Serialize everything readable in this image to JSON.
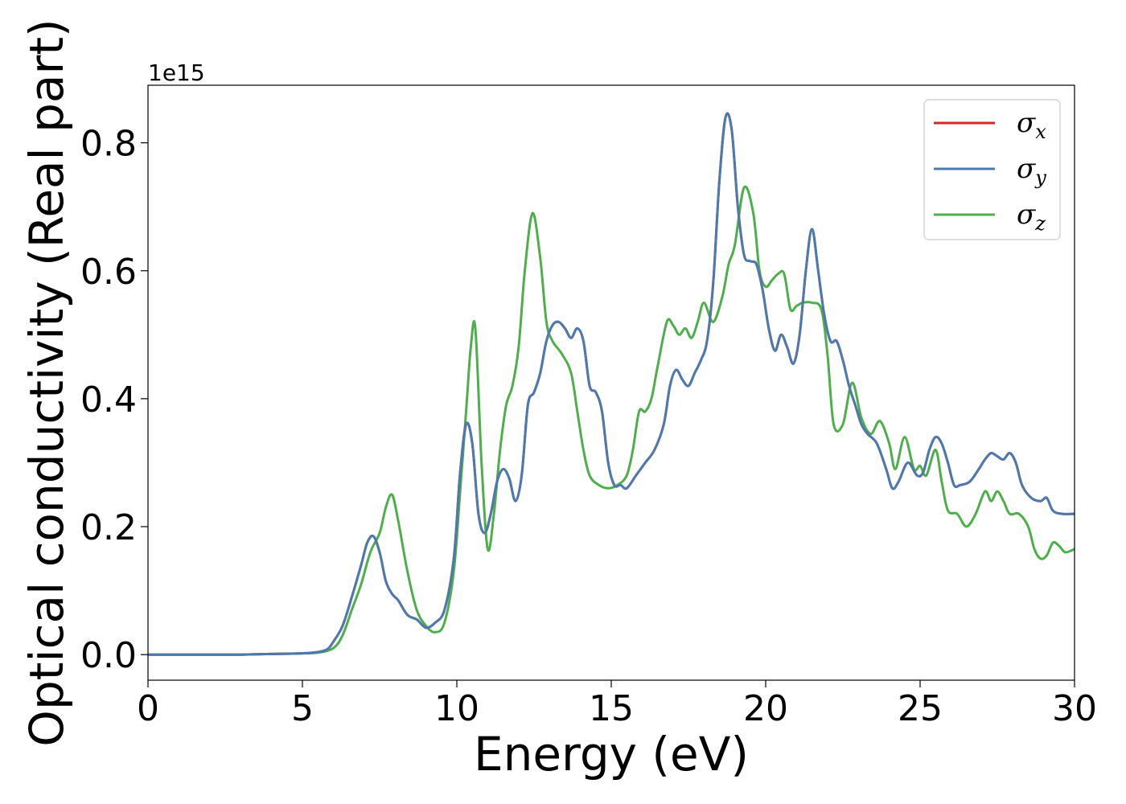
{
  "chart_data": {
    "type": "line",
    "xlabel": "Energy (eV)",
    "ylabel": "Optical conductivity (Real part)",
    "y_offset_text": "1e15",
    "xlim": [
      0,
      30
    ],
    "ylim": [
      -0.04,
      0.89
    ],
    "x_ticks": [
      0,
      5,
      10,
      15,
      20,
      25,
      30
    ],
    "x_tick_labels": [
      "0",
      "5",
      "10",
      "15",
      "20",
      "25",
      "30"
    ],
    "y_ticks": [
      0.0,
      0.2,
      0.4,
      0.6,
      0.8
    ],
    "y_tick_labels": [
      "0.0",
      "0.2",
      "0.4",
      "0.6",
      "0.8"
    ],
    "grid": false,
    "legend_position": "top-right",
    "series": [
      {
        "name": "σ",
        "subscript": "x",
        "color": "#d62728",
        "x": [
          0,
          1,
          2,
          3,
          4,
          5,
          5.5,
          5.8,
          6.0,
          6.3,
          6.6,
          6.9,
          7.1,
          7.3,
          7.5,
          7.7,
          7.9,
          8.1,
          8.4,
          8.7,
          9.0,
          9.3,
          9.6,
          9.9,
          10.1,
          10.3,
          10.5,
          10.7,
          10.9,
          11.1,
          11.3,
          11.5,
          11.7,
          11.9,
          12.1,
          12.3,
          12.5,
          12.7,
          12.9,
          13.1,
          13.3,
          13.5,
          13.7,
          13.9,
          14.1,
          14.3,
          14.5,
          14.7,
          14.9,
          15.1,
          15.3,
          15.5,
          15.8,
          16.1,
          16.4,
          16.7,
          16.9,
          17.1,
          17.3,
          17.5,
          17.7,
          17.9,
          18.1,
          18.3,
          18.5,
          18.7,
          18.9,
          19.1,
          19.3,
          19.5,
          19.7,
          19.9,
          20.1,
          20.3,
          20.5,
          20.7,
          20.9,
          21.1,
          21.3,
          21.5,
          21.7,
          21.9,
          22.1,
          22.3,
          22.5,
          22.7,
          22.9,
          23.1,
          23.3,
          23.6,
          23.9,
          24.1,
          24.3,
          24.6,
          24.9,
          25.1,
          25.3,
          25.5,
          25.7,
          25.9,
          26.1,
          26.3,
          26.6,
          26.9,
          27.1,
          27.3,
          27.5,
          27.7,
          27.9,
          28.1,
          28.3,
          28.6,
          28.9,
          29.1,
          29.3,
          29.6,
          30.0
        ],
        "values": [
          0.0,
          0.0,
          0.0,
          0.0,
          0.001,
          0.002,
          0.004,
          0.008,
          0.02,
          0.045,
          0.09,
          0.14,
          0.175,
          0.185,
          0.16,
          0.115,
          0.095,
          0.085,
          0.062,
          0.055,
          0.042,
          0.05,
          0.07,
          0.15,
          0.28,
          0.36,
          0.33,
          0.22,
          0.19,
          0.22,
          0.27,
          0.29,
          0.275,
          0.24,
          0.28,
          0.39,
          0.41,
          0.44,
          0.49,
          0.515,
          0.52,
          0.51,
          0.495,
          0.51,
          0.49,
          0.42,
          0.41,
          0.38,
          0.3,
          0.265,
          0.265,
          0.26,
          0.28,
          0.3,
          0.32,
          0.36,
          0.42,
          0.445,
          0.43,
          0.42,
          0.44,
          0.46,
          0.49,
          0.58,
          0.74,
          0.84,
          0.82,
          0.7,
          0.625,
          0.615,
          0.61,
          0.57,
          0.51,
          0.475,
          0.5,
          0.48,
          0.455,
          0.5,
          0.6,
          0.665,
          0.6,
          0.53,
          0.49,
          0.49,
          0.46,
          0.42,
          0.39,
          0.36,
          0.345,
          0.33,
          0.29,
          0.26,
          0.27,
          0.3,
          0.28,
          0.285,
          0.32,
          0.34,
          0.33,
          0.3,
          0.265,
          0.265,
          0.27,
          0.29,
          0.305,
          0.315,
          0.31,
          0.305,
          0.315,
          0.3,
          0.265,
          0.245,
          0.24,
          0.245,
          0.225,
          0.22,
          0.22
        ]
      },
      {
        "name": "σ",
        "subscript": "y",
        "color": "#4a7bb0",
        "x": [
          0,
          1,
          2,
          3,
          4,
          5,
          5.5,
          5.8,
          6.0,
          6.3,
          6.6,
          6.9,
          7.1,
          7.3,
          7.5,
          7.7,
          7.9,
          8.1,
          8.4,
          8.7,
          9.0,
          9.3,
          9.6,
          9.9,
          10.1,
          10.3,
          10.5,
          10.7,
          10.9,
          11.1,
          11.3,
          11.5,
          11.7,
          11.9,
          12.1,
          12.3,
          12.5,
          12.7,
          12.9,
          13.1,
          13.3,
          13.5,
          13.7,
          13.9,
          14.1,
          14.3,
          14.5,
          14.7,
          14.9,
          15.1,
          15.3,
          15.5,
          15.8,
          16.1,
          16.4,
          16.7,
          16.9,
          17.1,
          17.3,
          17.5,
          17.7,
          17.9,
          18.1,
          18.3,
          18.5,
          18.7,
          18.9,
          19.1,
          19.3,
          19.5,
          19.7,
          19.9,
          20.1,
          20.3,
          20.5,
          20.7,
          20.9,
          21.1,
          21.3,
          21.5,
          21.7,
          21.9,
          22.1,
          22.3,
          22.5,
          22.7,
          22.9,
          23.1,
          23.3,
          23.6,
          23.9,
          24.1,
          24.3,
          24.6,
          24.9,
          25.1,
          25.3,
          25.5,
          25.7,
          25.9,
          26.1,
          26.3,
          26.6,
          26.9,
          27.1,
          27.3,
          27.5,
          27.7,
          27.9,
          28.1,
          28.3,
          28.6,
          28.9,
          29.1,
          29.3,
          29.6,
          30.0
        ],
        "values": [
          0.0,
          0.0,
          0.0,
          0.0,
          0.001,
          0.002,
          0.004,
          0.008,
          0.02,
          0.045,
          0.09,
          0.14,
          0.175,
          0.185,
          0.16,
          0.115,
          0.095,
          0.085,
          0.062,
          0.055,
          0.042,
          0.05,
          0.07,
          0.15,
          0.28,
          0.36,
          0.33,
          0.22,
          0.19,
          0.22,
          0.27,
          0.29,
          0.275,
          0.24,
          0.28,
          0.39,
          0.41,
          0.44,
          0.49,
          0.515,
          0.52,
          0.51,
          0.495,
          0.51,
          0.49,
          0.42,
          0.41,
          0.38,
          0.3,
          0.265,
          0.265,
          0.26,
          0.28,
          0.3,
          0.32,
          0.36,
          0.42,
          0.445,
          0.43,
          0.42,
          0.44,
          0.46,
          0.49,
          0.58,
          0.74,
          0.84,
          0.82,
          0.7,
          0.625,
          0.615,
          0.61,
          0.57,
          0.51,
          0.475,
          0.5,
          0.48,
          0.455,
          0.5,
          0.6,
          0.665,
          0.6,
          0.53,
          0.49,
          0.49,
          0.46,
          0.42,
          0.39,
          0.36,
          0.345,
          0.33,
          0.29,
          0.26,
          0.27,
          0.3,
          0.28,
          0.285,
          0.32,
          0.34,
          0.33,
          0.3,
          0.265,
          0.265,
          0.27,
          0.29,
          0.305,
          0.315,
          0.31,
          0.305,
          0.315,
          0.3,
          0.265,
          0.245,
          0.24,
          0.245,
          0.225,
          0.22,
          0.22
        ]
      },
      {
        "name": "σ",
        "subscript": "z",
        "color": "#4daf4a",
        "x": [
          0,
          1,
          2,
          3,
          4,
          5,
          5.5,
          6.0,
          6.3,
          6.6,
          6.9,
          7.2,
          7.5,
          7.7,
          7.9,
          8.1,
          8.4,
          8.7,
          9.0,
          9.3,
          9.6,
          9.9,
          10.1,
          10.3,
          10.45,
          10.6,
          10.8,
          11.0,
          11.2,
          11.4,
          11.6,
          11.8,
          12.0,
          12.2,
          12.45,
          12.7,
          12.9,
          13.1,
          13.4,
          13.7,
          13.9,
          14.1,
          14.3,
          14.6,
          14.9,
          15.2,
          15.5,
          15.7,
          15.9,
          16.1,
          16.3,
          16.5,
          16.8,
          17.0,
          17.2,
          17.4,
          17.6,
          17.8,
          18.0,
          18.3,
          18.6,
          18.8,
          19.0,
          19.3,
          19.6,
          19.8,
          20.0,
          20.2,
          20.4,
          20.6,
          20.8,
          21.0,
          21.2,
          21.5,
          21.8,
          22.0,
          22.2,
          22.5,
          22.8,
          23.1,
          23.4,
          23.7,
          24.0,
          24.2,
          24.5,
          24.8,
          25.0,
          25.2,
          25.5,
          25.7,
          25.9,
          26.2,
          26.5,
          26.8,
          27.1,
          27.3,
          27.5,
          27.7,
          27.9,
          28.2,
          28.5,
          28.7,
          28.9,
          29.1,
          29.3,
          29.5,
          29.7,
          30.0
        ],
        "values": [
          0.0,
          0.0,
          0.0,
          0.0,
          0.001,
          0.002,
          0.003,
          0.01,
          0.03,
          0.07,
          0.11,
          0.16,
          0.19,
          0.23,
          0.25,
          0.21,
          0.13,
          0.07,
          0.045,
          0.035,
          0.05,
          0.13,
          0.25,
          0.38,
          0.48,
          0.51,
          0.3,
          0.165,
          0.22,
          0.32,
          0.39,
          0.42,
          0.48,
          0.6,
          0.69,
          0.62,
          0.52,
          0.49,
          0.47,
          0.44,
          0.38,
          0.32,
          0.28,
          0.265,
          0.26,
          0.265,
          0.28,
          0.32,
          0.38,
          0.38,
          0.4,
          0.45,
          0.52,
          0.515,
          0.5,
          0.51,
          0.495,
          0.52,
          0.55,
          0.52,
          0.56,
          0.61,
          0.64,
          0.73,
          0.69,
          0.6,
          0.575,
          0.585,
          0.595,
          0.595,
          0.54,
          0.545,
          0.55,
          0.55,
          0.54,
          0.47,
          0.36,
          0.36,
          0.425,
          0.37,
          0.345,
          0.365,
          0.33,
          0.29,
          0.34,
          0.29,
          0.295,
          0.28,
          0.32,
          0.27,
          0.225,
          0.22,
          0.2,
          0.22,
          0.255,
          0.24,
          0.255,
          0.24,
          0.22,
          0.22,
          0.2,
          0.165,
          0.15,
          0.155,
          0.175,
          0.17,
          0.16,
          0.165
        ]
      }
    ]
  }
}
